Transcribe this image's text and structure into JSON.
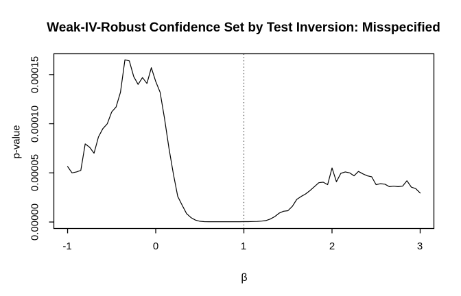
{
  "chart_data": {
    "type": "line",
    "title": "Weak-IV-Robust Confidence Set by Test Inversion: Misspecified",
    "xlabel": "β",
    "ylabel": "p-value",
    "grid": false,
    "legend": "none",
    "xlim": [
      -1.156,
      3.156
    ],
    "ylim": [
      -6.6e-06,
      0.00017116
    ],
    "x_ticks": [
      -1,
      0,
      1,
      2,
      3
    ],
    "x_tick_labels": [
      "-1",
      "0",
      "1",
      "2",
      "3"
    ],
    "y_ticks": [
      0,
      5e-05,
      0.0001,
      0.00015
    ],
    "y_tick_labels": [
      "0.00000",
      "0.00005",
      "0.00010",
      "0.00015"
    ],
    "reference_line": {
      "x": 1,
      "style": "dotted",
      "color": "#3a3a3a"
    },
    "line_color": "#000000",
    "series": [
      {
        "name": "p-value",
        "x": [
          -1.0,
          -0.95,
          -0.9,
          -0.85,
          -0.8,
          -0.75,
          -0.7,
          -0.65,
          -0.6,
          -0.55,
          -0.5,
          -0.45,
          -0.4,
          -0.35,
          -0.3,
          -0.25,
          -0.2,
          -0.15,
          -0.1,
          -0.05,
          0.0,
          0.05,
          0.1,
          0.15,
          0.2,
          0.25,
          0.3,
          0.35,
          0.4,
          0.45,
          0.5,
          0.55,
          0.6,
          0.65,
          0.7,
          0.75,
          0.8,
          0.85,
          0.9,
          0.95,
          1.0,
          1.05,
          1.1,
          1.15,
          1.2,
          1.25,
          1.3,
          1.35,
          1.4,
          1.45,
          1.5,
          1.55,
          1.6,
          1.65,
          1.7,
          1.75,
          1.8,
          1.85,
          1.9,
          1.95,
          2.0,
          2.05,
          2.1,
          2.15,
          2.2,
          2.25,
          2.3,
          2.35,
          2.4,
          2.45,
          2.5,
          2.55,
          2.6,
          2.65,
          2.7,
          2.75,
          2.8,
          2.85,
          2.9,
          2.95,
          3.0
        ],
        "y": [
          5.65e-05,
          5e-05,
          5.1e-05,
          5.25e-05,
          7.95e-05,
          7.6e-05,
          7e-05,
          8.65e-05,
          9.5e-05,
          0.0001,
          0.000112,
          0.000117,
          0.000132,
          0.000165,
          0.000164,
          0.000148,
          0.00014,
          0.000147,
          0.000141,
          0.000157,
          0.000143,
          0.000132,
          0.000105,
          7.5e-05,
          4.9e-05,
          2.6e-05,
          1.7e-05,
          8.5e-06,
          4.5e-06,
          2e-06,
          8e-07,
          4e-07,
          3e-07,
          3e-07,
          3e-07,
          3e-07,
          3e-07,
          3e-07,
          3e-07,
          3e-07,
          4e-07,
          4e-07,
          5e-07,
          6e-07,
          9e-07,
          1.5e-06,
          3e-06,
          5.5e-06,
          9e-06,
          1.1e-05,
          1.15e-05,
          1.6e-05,
          2.3e-05,
          2.6e-05,
          2.85e-05,
          3.2e-05,
          3.6e-05,
          4e-05,
          4.05e-05,
          3.8e-05,
          5.5e-05,
          4.1e-05,
          4.95e-05,
          5.1e-05,
          5e-05,
          4.7e-05,
          5.15e-05,
          4.9e-05,
          4.7e-05,
          4.6e-05,
          3.8e-05,
          3.9e-05,
          3.85e-05,
          3.6e-05,
          3.65e-05,
          3.6e-05,
          3.65e-05,
          4.2e-05,
          3.55e-05,
          3.4e-05,
          2.95e-05
        ]
      }
    ]
  }
}
